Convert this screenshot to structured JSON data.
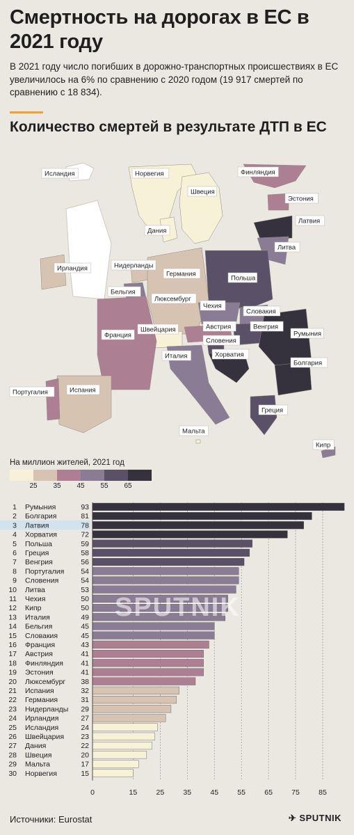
{
  "title": "Смертность на дорогах в ЕС в 2021 году",
  "lead": "В 2021 году число погибших в дорожно-транспортных происшествиях в ЕС увеличилось на 6% по сравнению с 2020 годом (19 917 смертей по сравнению с 18 834).",
  "subtitle": "Количество смертей в результате ДТП в ЕС",
  "map_labels": [
    "Исландия",
    "Норвегия",
    "Финляндия",
    "Швеция",
    "Эстония",
    "Дания",
    "Латвия",
    "Литва",
    "Ирландия",
    "Нидерланды",
    "Германия",
    "Польша",
    "Бельгия",
    "Люксембург",
    "Чехия",
    "Словакия",
    "Австрия",
    "Венгрия",
    "Румыния",
    "Швейцария",
    "Словения",
    "Франция",
    "Италия",
    "Хорватия",
    "Болгария",
    "Португалия",
    "Испания",
    "Греция",
    "Мальта",
    "Кипр"
  ],
  "legend": {
    "title": "На миллион жителей, 2021 год",
    "colors": [
      "#f6f1d7",
      "#d6c3b2",
      "#ad7f92",
      "#8b7c95",
      "#5a5168",
      "#35313d"
    ],
    "ticks": [
      "25",
      "35",
      "45",
      "55",
      "65"
    ]
  },
  "chart_data": {
    "type": "bar",
    "orientation": "horizontal",
    "ranks": [
      "1",
      "2",
      "3",
      "4",
      "5",
      "6",
      "7",
      "8",
      "9",
      "10",
      "11",
      "12",
      "13",
      "14",
      "15",
      "16",
      "17",
      "18",
      "19",
      "20",
      "21",
      "22",
      "23",
      "24",
      "25",
      "26",
      "27",
      "28",
      "29",
      "30"
    ],
    "categories": [
      "Румыния",
      "Болгария",
      "Латвия",
      "Хорватия",
      "Польша",
      "Греция",
      "Венгрия",
      "Португалия",
      "Словения",
      "Литва",
      "Чехия",
      "Кипр",
      "Италия",
      "Бельгия",
      "Словакия",
      "Франция",
      "Австрия",
      "Финляндия",
      "Эстония",
      "Люксембург",
      "Испания",
      "Германия",
      "Нидерланды",
      "Ирландия",
      "Исландия",
      "Швейцария",
      "Дания",
      "Швеция",
      "Мальта",
      "Норвегия"
    ],
    "values": [
      93,
      81,
      78,
      72,
      59,
      58,
      56,
      54,
      54,
      53,
      50,
      50,
      49,
      45,
      45,
      43,
      41,
      41,
      41,
      38,
      32,
      31,
      29,
      27,
      24,
      23,
      22,
      20,
      17,
      15
    ],
    "highlighted": "Латвия",
    "xticks": [
      "0",
      "15",
      "25",
      "35",
      "45",
      "55",
      "65",
      "75",
      "85"
    ],
    "xlim": [
      0,
      94
    ]
  },
  "watermark": "SPUTNIK",
  "footer": {
    "source": "Источники: Eurostat",
    "logo": "✈ SPUTNIK"
  }
}
